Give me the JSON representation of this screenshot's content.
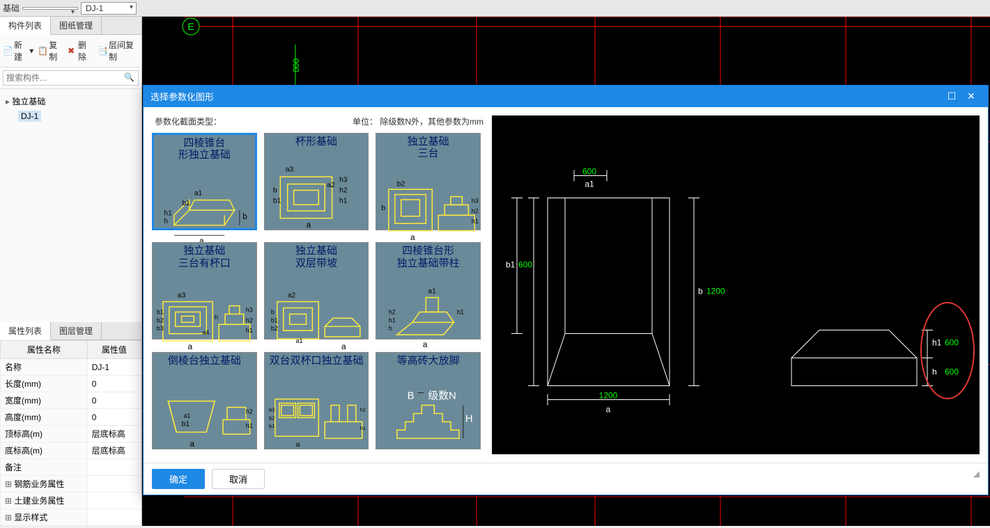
{
  "toolbar": {
    "category_label": "基础",
    "component_select": "DJ-1"
  },
  "left_panel": {
    "tab1": "构件列表",
    "tab2": "图纸管理",
    "btn_new": "新建",
    "btn_copy": "复制",
    "btn_delete": "删除",
    "btn_layercopy": "层间复制",
    "search_placeholder": "搜索构件...",
    "tree_parent": "独立基础",
    "tree_child": "DJ-1"
  },
  "prop_panel": {
    "tab1": "属性列表",
    "tab2": "图层管理",
    "col_name": "属性名称",
    "col_value": "属性值",
    "rows": [
      {
        "name": "名称",
        "value": "DJ-1"
      },
      {
        "name": "长度(mm)",
        "value": "0"
      },
      {
        "name": "宽度(mm)",
        "value": "0"
      },
      {
        "name": "高度(mm)",
        "value": "0"
      },
      {
        "name": "顶标高(m)",
        "value": "层底标高"
      },
      {
        "name": "底标高(m)",
        "value": "层底标高"
      },
      {
        "name": "备注",
        "value": ""
      }
    ],
    "exp_rows": [
      {
        "name": "钢筋业务属性"
      },
      {
        "name": "土建业务属性"
      },
      {
        "name": "显示样式"
      }
    ]
  },
  "canvas": {
    "axis_label": "E",
    "grid_color": "#ff0000",
    "text_color": "#00ff00",
    "dim_text": "000"
  },
  "modal": {
    "title": "选择参数化图形",
    "section_label": "参数化截面类型：",
    "unit_label": "单位：  除级数N外，其他参数为mm",
    "thumbs": [
      {
        "title": "四棱锥台\n形独立基础",
        "selected": true
      },
      {
        "title": "杯形基础"
      },
      {
        "title": "独立基础\n三台"
      },
      {
        "title": "独立基础\n三台有杯口"
      },
      {
        "title": "独立基础\n双层带坡"
      },
      {
        "title": "四棱锥台形\n独立基础带柱"
      },
      {
        "title": "倒棱台独立基础"
      },
      {
        "title": "双台双杯口独立基础"
      },
      {
        "title": "等高砖大放脚"
      }
    ],
    "preview": {
      "a": "1200",
      "a1": "600",
      "b": "1200",
      "b1": "600",
      "h": "600",
      "h1": "600",
      "dim_color": "#00ff00",
      "line_color": "#ffffff"
    },
    "btn_ok": "确定",
    "btn_cancel": "取消"
  }
}
